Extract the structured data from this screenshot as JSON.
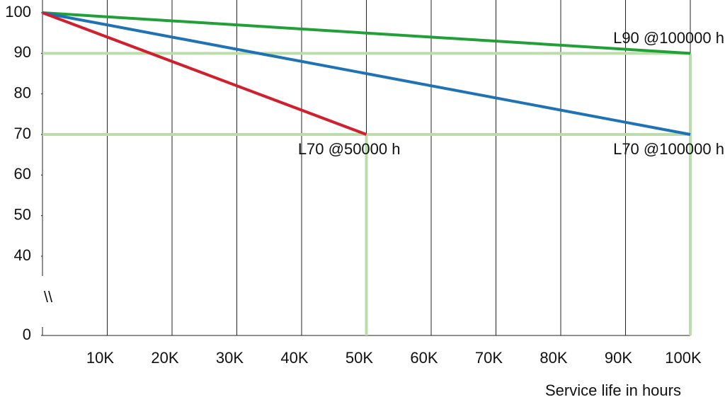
{
  "chart_data": {
    "type": "line",
    "x_label": "Service life in hours",
    "y_break_label": "\\\\",
    "y_break": [
      0,
      40
    ],
    "xlim": [
      0,
      100000
    ],
    "ylim": [
      0,
      100
    ],
    "xticks": [
      {
        "value": 10000,
        "label": "10K"
      },
      {
        "value": 20000,
        "label": "20K"
      },
      {
        "value": 30000,
        "label": "30K"
      },
      {
        "value": 40000,
        "label": "40K"
      },
      {
        "value": 50000,
        "label": "50K"
      },
      {
        "value": 60000,
        "label": "60K"
      },
      {
        "value": 70000,
        "label": "70K"
      },
      {
        "value": 80000,
        "label": "80K"
      },
      {
        "value": 90000,
        "label": "90K"
      },
      {
        "value": 100000,
        "label": "100K"
      }
    ],
    "yticks": [
      0,
      40,
      50,
      60,
      70,
      80,
      90,
      100
    ],
    "grid": true,
    "series": [
      {
        "color": "#21a038",
        "x": [
          0,
          100000
        ],
        "values": [
          100,
          90
        ]
      },
      {
        "color": "#1f72b4",
        "x": [
          0,
          100000
        ],
        "values": [
          100,
          70
        ]
      },
      {
        "color": "#d0202e",
        "x": [
          0,
          50000
        ],
        "values": [
          100,
          70
        ]
      }
    ],
    "reference_color": "#bcdcab",
    "reference_points": [
      {
        "x": 50000,
        "y": 70
      },
      {
        "x": 100000,
        "y": 90
      },
      {
        "x": 100000,
        "y": 70
      }
    ],
    "annotations": [
      {
        "text": "L90 @100000 h",
        "x": 100000,
        "y": 90,
        "side": "above"
      },
      {
        "text": "L70 @100000 h",
        "x": 100000,
        "y": 70,
        "side": "below"
      },
      {
        "text": "L70 @50000 h",
        "x": 50000,
        "y": 70,
        "side": "below"
      }
    ]
  }
}
